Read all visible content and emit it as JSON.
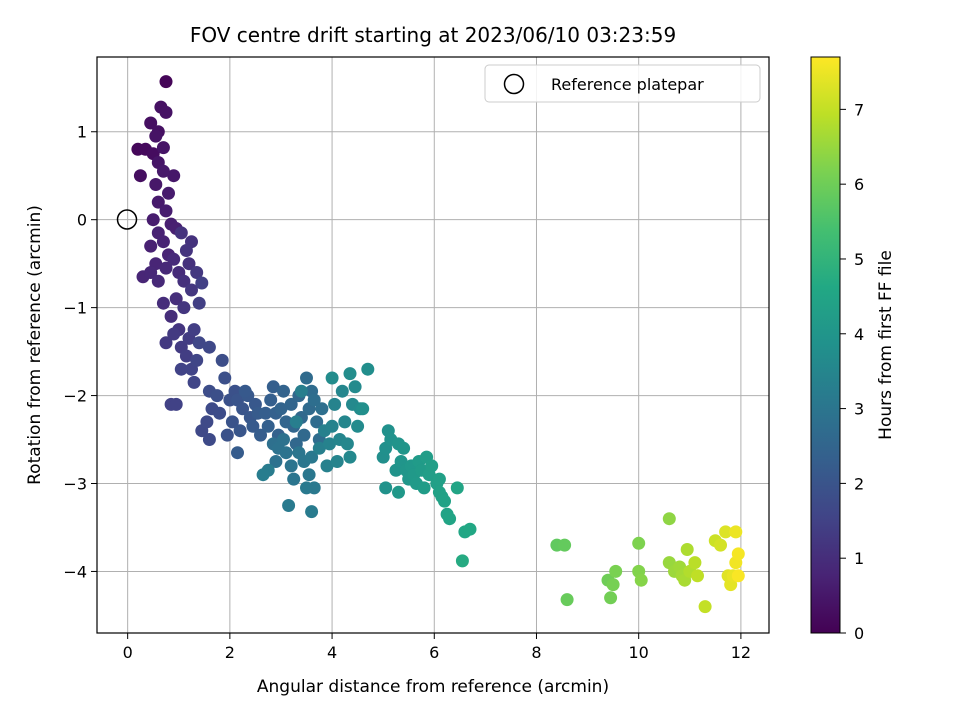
{
  "chart_data": {
    "type": "scatter",
    "title": "FOV centre drift starting at 2023/06/10 03:23:59",
    "xlabel": "Angular distance from reference (arcmin)",
    "ylabel": "Rotation from reference (arcmin)",
    "xlim": [
      -0.6,
      12.55
    ],
    "ylim": [
      -4.7,
      1.85
    ],
    "xticks": [
      0,
      2,
      4,
      6,
      8,
      10,
      12
    ],
    "yticks": [
      -4,
      -3,
      -2,
      -1,
      0,
      1
    ],
    "grid": true,
    "legend": {
      "position": "top-right",
      "entries": [
        "Reference platepar"
      ]
    },
    "reference_point": {
      "x": 0,
      "y": 0,
      "label": "Reference platepar"
    },
    "colorbar": {
      "label": "Hours from first FF file",
      "colormap": "viridis",
      "range": [
        0,
        7.7
      ],
      "ticks": [
        0,
        1,
        2,
        3,
        4,
        5,
        6,
        7
      ]
    },
    "color_stops": [
      "#440154",
      "#482475",
      "#414487",
      "#355f8d",
      "#2a788e",
      "#21918c",
      "#22a884",
      "#44bf70",
      "#7ad151",
      "#bddf26",
      "#fde725"
    ],
    "series": [
      {
        "values": [
          [
            0.75,
            1.57,
            0.1
          ],
          [
            0.2,
            0.8,
            0.15
          ],
          [
            0.35,
            0.8,
            0.2
          ],
          [
            0.5,
            0.75,
            0.25
          ],
          [
            0.25,
            0.5,
            0.28
          ],
          [
            0.45,
            1.1,
            0.3
          ],
          [
            0.6,
            1.0,
            0.32
          ],
          [
            0.65,
            1.28,
            0.35
          ],
          [
            0.75,
            1.22,
            0.38
          ],
          [
            0.55,
            0.95,
            0.4
          ],
          [
            0.7,
            0.82,
            0.42
          ],
          [
            0.6,
            0.65,
            0.45
          ],
          [
            0.9,
            0.5,
            0.48
          ],
          [
            0.55,
            0.4,
            0.5
          ],
          [
            0.7,
            0.55,
            0.52
          ],
          [
            0.6,
            0.2,
            0.55
          ],
          [
            0.8,
            0.3,
            0.58
          ],
          [
            0.5,
            0.0,
            0.6
          ],
          [
            0.75,
            0.1,
            0.62
          ],
          [
            0.85,
            -0.05,
            0.65
          ],
          [
            0.95,
            -0.1,
            0.68
          ],
          [
            0.45,
            -0.3,
            0.7
          ],
          [
            0.6,
            -0.15,
            0.72
          ],
          [
            0.7,
            -0.25,
            0.75
          ],
          [
            0.8,
            -0.4,
            0.78
          ],
          [
            0.55,
            -0.5,
            0.8
          ],
          [
            0.3,
            -0.65,
            0.82
          ],
          [
            0.45,
            -0.6,
            0.85
          ],
          [
            0.6,
            -0.7,
            0.88
          ],
          [
            0.75,
            -0.55,
            0.9
          ],
          [
            0.9,
            -0.45,
            0.92
          ],
          [
            1.0,
            -0.6,
            0.95
          ],
          [
            0.7,
            -0.95,
            0.98
          ],
          [
            0.85,
            -1.1,
            1.0
          ],
          [
            0.95,
            -0.9,
            1.03
          ],
          [
            1.1,
            -0.7,
            1.05
          ],
          [
            1.2,
            -0.5,
            1.08
          ],
          [
            1.25,
            -0.25,
            1.1
          ],
          [
            1.05,
            -0.15,
            1.12
          ],
          [
            1.15,
            -0.35,
            1.15
          ],
          [
            1.0,
            -1.25,
            1.18
          ],
          [
            1.1,
            -1.0,
            1.2
          ],
          [
            1.25,
            -0.8,
            1.22
          ],
          [
            1.35,
            -0.6,
            1.25
          ],
          [
            0.75,
            -1.4,
            1.28
          ],
          [
            0.9,
            -1.3,
            1.3
          ],
          [
            1.05,
            -1.45,
            1.32
          ],
          [
            1.2,
            -1.35,
            1.35
          ],
          [
            1.15,
            -1.55,
            1.38
          ],
          [
            1.3,
            -1.25,
            1.4
          ],
          [
            1.4,
            -0.95,
            1.42
          ],
          [
            1.45,
            -0.72,
            1.45
          ],
          [
            0.85,
            -2.1,
            1.48
          ],
          [
            0.95,
            -2.1,
            1.5
          ],
          [
            1.05,
            -1.7,
            1.52
          ],
          [
            1.25,
            -1.7,
            1.55
          ],
          [
            1.3,
            -1.85,
            1.58
          ],
          [
            1.35,
            -1.6,
            1.6
          ],
          [
            1.4,
            -1.4,
            1.62
          ],
          [
            1.6,
            -1.45,
            1.65
          ],
          [
            1.45,
            -2.4,
            1.68
          ],
          [
            1.55,
            -2.3,
            1.7
          ],
          [
            1.6,
            -2.5,
            1.72
          ],
          [
            1.65,
            -2.15,
            1.75
          ],
          [
            1.8,
            -2.2,
            1.78
          ],
          [
            1.6,
            -1.95,
            1.8
          ],
          [
            1.85,
            -1.6,
            1.82
          ],
          [
            1.75,
            -2.0,
            1.85
          ],
          [
            1.9,
            -1.8,
            1.88
          ],
          [
            2.0,
            -2.05,
            1.9
          ],
          [
            2.1,
            -1.95,
            1.92
          ],
          [
            1.95,
            -2.45,
            1.95
          ],
          [
            2.05,
            -2.3,
            1.98
          ],
          [
            2.15,
            -2.05,
            2.0
          ],
          [
            2.25,
            -2.15,
            2.02
          ],
          [
            2.2,
            -2.4,
            2.05
          ],
          [
            2.4,
            -2.25,
            2.08
          ],
          [
            2.35,
            -2.0,
            2.1
          ],
          [
            2.5,
            -2.1,
            2.12
          ],
          [
            2.3,
            -1.95,
            2.15
          ],
          [
            2.45,
            -2.35,
            2.18
          ],
          [
            2.55,
            -2.2,
            2.2
          ],
          [
            2.15,
            -2.65,
            2.22
          ],
          [
            2.6,
            -2.45,
            2.25
          ],
          [
            2.7,
            -2.2,
            2.28
          ],
          [
            2.85,
            -1.9,
            2.3
          ],
          [
            2.8,
            -2.05,
            2.32
          ],
          [
            2.75,
            -2.35,
            2.35
          ],
          [
            2.9,
            -2.2,
            2.38
          ],
          [
            2.95,
            -2.45,
            2.4
          ],
          [
            3.05,
            -1.95,
            2.42
          ],
          [
            3.0,
            -2.15,
            2.45
          ],
          [
            3.1,
            -2.3,
            2.48
          ],
          [
            3.2,
            -2.1,
            2.5
          ],
          [
            3.25,
            -2.35,
            2.52
          ],
          [
            3.35,
            -2.0,
            2.55
          ],
          [
            3.3,
            -2.55,
            2.58
          ],
          [
            3.4,
            -2.25,
            2.6
          ],
          [
            3.45,
            -2.45,
            2.62
          ],
          [
            3.55,
            -2.15,
            2.65
          ],
          [
            3.5,
            -1.8,
            2.68
          ],
          [
            3.6,
            -1.95,
            2.7
          ],
          [
            3.7,
            -2.3,
            2.72
          ],
          [
            3.75,
            -2.5,
            2.75
          ],
          [
            3.65,
            -2.05,
            2.78
          ],
          [
            3.8,
            -2.15,
            2.8
          ],
          [
            2.85,
            -2.55,
            2.82
          ],
          [
            2.9,
            -2.75,
            2.85
          ],
          [
            2.95,
            -2.6,
            2.88
          ],
          [
            3.05,
            -2.5,
            2.9
          ],
          [
            3.1,
            -2.65,
            2.92
          ],
          [
            3.2,
            -2.8,
            2.95
          ],
          [
            3.25,
            -2.95,
            2.98
          ],
          [
            3.35,
            -2.65,
            3.0
          ],
          [
            3.45,
            -2.75,
            3.02
          ],
          [
            3.55,
            -2.9,
            3.05
          ],
          [
            3.6,
            -2.7,
            3.08
          ],
          [
            3.65,
            -3.05,
            3.1
          ],
          [
            3.5,
            -3.05,
            3.12
          ],
          [
            3.15,
            -3.25,
            3.15
          ],
          [
            3.6,
            -3.32,
            3.18
          ],
          [
            2.75,
            -2.85,
            3.2
          ],
          [
            2.65,
            -2.9,
            3.22
          ],
          [
            3.3,
            -2.3,
            3.25
          ],
          [
            3.4,
            -1.95,
            3.28
          ],
          [
            3.75,
            -2.6,
            3.3
          ],
          [
            3.85,
            -2.4,
            3.32
          ],
          [
            3.9,
            -2.8,
            3.35
          ],
          [
            3.95,
            -2.55,
            3.38
          ],
          [
            4.0,
            -2.35,
            3.4
          ],
          [
            4.05,
            -2.1,
            3.42
          ],
          [
            4.1,
            -2.75,
            3.45
          ],
          [
            4.15,
            -2.5,
            3.48
          ],
          [
            4.2,
            -1.95,
            3.5
          ],
          [
            4.25,
            -2.3,
            3.52
          ],
          [
            4.3,
            -2.55,
            3.55
          ],
          [
            4.35,
            -2.7,
            3.58
          ],
          [
            4.4,
            -2.1,
            3.6
          ],
          [
            4.45,
            -1.9,
            3.62
          ],
          [
            4.5,
            -2.35,
            3.65
          ],
          [
            4.55,
            -2.15,
            3.68
          ],
          [
            4.0,
            -1.8,
            3.7
          ],
          [
            4.35,
            -1.75,
            3.72
          ],
          [
            4.7,
            -1.7,
            3.75
          ],
          [
            4.6,
            -2.15,
            3.78
          ],
          [
            5.0,
            -2.7,
            3.8
          ],
          [
            5.05,
            -2.6,
            3.82
          ],
          [
            5.1,
            -2.4,
            3.85
          ],
          [
            5.15,
            -2.5,
            3.88
          ],
          [
            5.05,
            -3.05,
            3.9
          ],
          [
            5.25,
            -2.85,
            3.92
          ],
          [
            5.3,
            -2.55,
            3.95
          ],
          [
            5.35,
            -2.75,
            3.98
          ],
          [
            5.4,
            -2.6,
            4.0
          ],
          [
            5.45,
            -2.85,
            4.02
          ],
          [
            5.5,
            -2.95,
            4.05
          ],
          [
            5.55,
            -2.8,
            4.08
          ],
          [
            5.3,
            -3.1,
            4.1
          ],
          [
            5.6,
            -2.9,
            4.12
          ],
          [
            5.65,
            -3.0,
            4.15
          ],
          [
            5.7,
            -2.75,
            4.18
          ],
          [
            5.75,
            -2.85,
            4.2
          ],
          [
            5.8,
            -3.05,
            4.22
          ],
          [
            5.85,
            -2.7,
            4.25
          ],
          [
            5.9,
            -2.9,
            4.28
          ],
          [
            5.95,
            -2.8,
            4.3
          ],
          [
            6.05,
            -3.0,
            4.32
          ],
          [
            6.1,
            -2.95,
            4.35
          ],
          [
            6.15,
            -3.15,
            4.38
          ],
          [
            6.1,
            -3.1,
            4.4
          ],
          [
            6.2,
            -3.2,
            4.42
          ],
          [
            6.25,
            -3.35,
            4.45
          ],
          [
            6.3,
            -3.4,
            4.48
          ],
          [
            6.45,
            -3.05,
            4.5
          ],
          [
            6.6,
            -3.55,
            4.55
          ],
          [
            6.7,
            -3.52,
            4.6
          ],
          [
            6.55,
            -3.88,
            4.7
          ],
          [
            8.4,
            -3.7,
            5.8
          ],
          [
            8.55,
            -3.7,
            5.85
          ],
          [
            8.6,
            -4.32,
            5.9
          ],
          [
            9.4,
            -4.1,
            6.0
          ],
          [
            9.45,
            -4.3,
            6.05
          ],
          [
            9.5,
            -4.15,
            6.1
          ],
          [
            9.55,
            -4.0,
            6.15
          ],
          [
            10.0,
            -3.68,
            6.2
          ],
          [
            10.0,
            -4.0,
            6.25
          ],
          [
            10.05,
            -4.1,
            6.3
          ],
          [
            10.6,
            -3.4,
            6.4
          ],
          [
            10.6,
            -3.9,
            6.5
          ],
          [
            10.7,
            -4.0,
            6.55
          ],
          [
            10.8,
            -3.95,
            6.6
          ],
          [
            10.85,
            -4.05,
            6.65
          ],
          [
            10.9,
            -4.1,
            6.7
          ],
          [
            10.95,
            -3.75,
            6.75
          ],
          [
            11.0,
            -4.0,
            6.8
          ],
          [
            11.1,
            -3.9,
            6.9
          ],
          [
            11.15,
            -4.05,
            6.95
          ],
          [
            11.3,
            -4.4,
            7.0
          ],
          [
            11.5,
            -3.65,
            7.1
          ],
          [
            11.6,
            -3.7,
            7.2
          ],
          [
            11.7,
            -3.55,
            7.3
          ],
          [
            11.75,
            -4.05,
            7.35
          ],
          [
            11.8,
            -4.15,
            7.4
          ],
          [
            11.85,
            -4.05,
            7.45
          ],
          [
            11.9,
            -3.55,
            7.5
          ],
          [
            11.9,
            -3.9,
            7.55
          ],
          [
            11.95,
            -3.8,
            7.6
          ],
          [
            11.95,
            -4.05,
            7.65
          ]
        ]
      }
    ]
  }
}
